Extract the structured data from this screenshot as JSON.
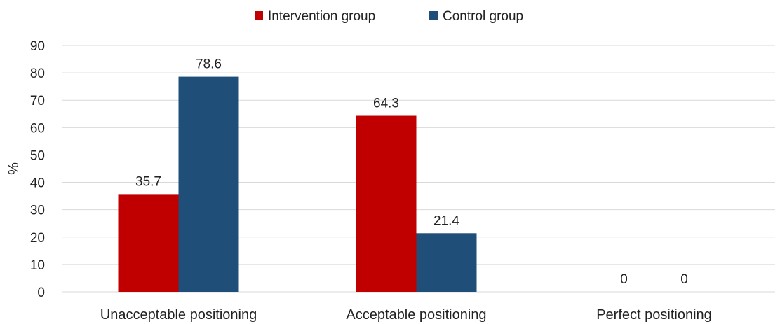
{
  "chart_data": {
    "type": "bar",
    "title": "",
    "xlabel": "",
    "ylabel": "%",
    "ylim": [
      0,
      90
    ],
    "yticks": [
      0,
      10,
      20,
      30,
      40,
      50,
      60,
      70,
      80,
      90
    ],
    "grid": true,
    "legend_position": "top-center",
    "categories": [
      "Unacceptable positioning",
      "Acceptable positioning",
      "Perfect positioning"
    ],
    "series": [
      {
        "name": "Intervention group",
        "color": "#c00000",
        "values": [
          35.7,
          64.3,
          0
        ]
      },
      {
        "name": "Control group",
        "color": "#1f4e79",
        "values": [
          78.6,
          21.4,
          0
        ]
      }
    ]
  }
}
